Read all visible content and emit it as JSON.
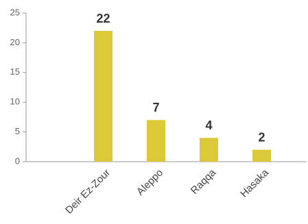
{
  "chart_data": {
    "type": "bar",
    "categories": [
      "Deir Ez-Zour",
      "Aleppo",
      "Raqqa",
      "Hasaka"
    ],
    "values": [
      22,
      7,
      4,
      2
    ],
    "color": "#dcc93a",
    "ylim": [
      0,
      25
    ],
    "yticks": [
      0,
      5,
      10,
      15,
      20,
      25
    ],
    "grid": false
  }
}
